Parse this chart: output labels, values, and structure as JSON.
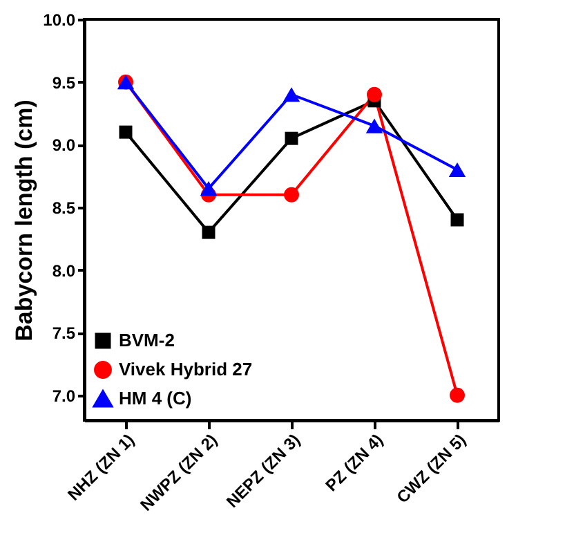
{
  "chart_data": {
    "type": "line",
    "ylabel": "Babycorn length (cm)",
    "categories": [
      "NHZ (ZN 1)",
      "NWPZ (ZN 2)",
      "NEPZ (ZN 3)",
      "PZ (ZN 4)",
      "CWZ (ZN 5)"
    ],
    "series": [
      {
        "name": "BVM-2",
        "color": "#000000",
        "marker": "square",
        "values": [
          9.1,
          8.3,
          9.05,
          9.35,
          8.4
        ]
      },
      {
        "name": "Vivek Hybrid 27",
        "color": "#ff0000",
        "marker": "circle",
        "values": [
          9.5,
          8.6,
          8.6,
          9.4,
          7.0
        ]
      },
      {
        "name": "HM 4 (C)",
        "color": "#0000ff",
        "marker": "triangle",
        "values": [
          9.5,
          8.65,
          9.4,
          9.15,
          8.8
        ]
      }
    ],
    "ylim": [
      6.8,
      10.0
    ],
    "yticks": [
      {
        "value": 7.0,
        "label": "7.0"
      },
      {
        "value": 7.5,
        "label": "7.5"
      },
      {
        "value": 8.0,
        "label": "8.0"
      },
      {
        "value": 8.5,
        "label": "8.5"
      },
      {
        "value": 9.0,
        "label": "9.0"
      },
      {
        "value": 9.5,
        "label": "9.5"
      },
      {
        "value": 10.0,
        "label": "10.0"
      }
    ],
    "grid": false,
    "legend": "bottom left",
    "line_style": "solid"
  }
}
